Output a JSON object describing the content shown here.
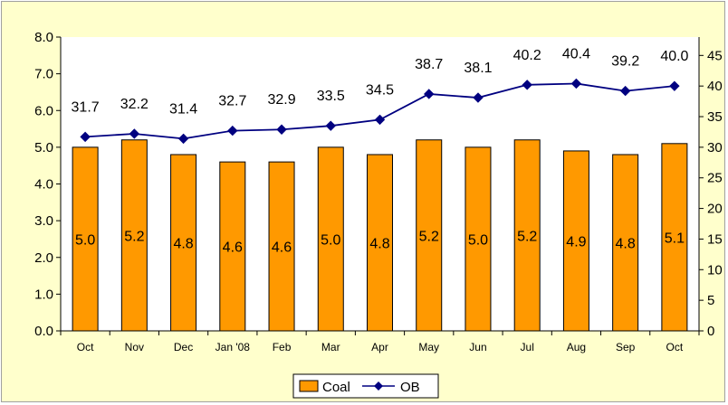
{
  "chart_data": {
    "type": "bar",
    "categories": [
      "Oct",
      "Nov",
      "Dec",
      "Jan '08",
      "Feb",
      "Mar",
      "Apr",
      "May",
      "Jun",
      "Jul",
      "Aug",
      "Sep",
      "Oct"
    ],
    "series": [
      {
        "name": "Coal",
        "type": "bar",
        "axis": "left",
        "color": "#ff9900",
        "values": [
          5.0,
          5.2,
          4.8,
          4.6,
          4.6,
          5.0,
          4.8,
          5.2,
          5.0,
          5.2,
          4.9,
          4.8,
          5.1
        ],
        "labels": [
          "5.0",
          "5.2",
          "4.8",
          "4.6",
          "4.6",
          "5.0",
          "4.8",
          "5.2",
          "5.0",
          "5.2",
          "4.9",
          "4.8",
          "5.1"
        ]
      },
      {
        "name": "OB",
        "type": "line",
        "axis": "right",
        "color": "#000080",
        "marker": "diamond",
        "values": [
          31.7,
          32.2,
          31.4,
          32.7,
          32.9,
          33.5,
          34.5,
          38.7,
          38.1,
          40.2,
          40.4,
          39.2,
          40.0
        ],
        "labels": [
          "31.7",
          "32.2",
          "31.4",
          "32.7",
          "32.9",
          "33.5",
          "34.5",
          "38.7",
          "38.1",
          "40.2",
          "40.4",
          "39.2",
          "40.0"
        ]
      }
    ],
    "y_left": {
      "ylim": [
        0,
        8
      ],
      "ticks": [
        "0.0",
        "1.0",
        "2.0",
        "3.0",
        "4.0",
        "5.0",
        "6.0",
        "7.0",
        "8.0"
      ]
    },
    "y_right": {
      "ylim": [
        0,
        48
      ],
      "ticks": [
        "0",
        "5",
        "10",
        "15",
        "20",
        "25",
        "30",
        "35",
        "40",
        "45"
      ]
    },
    "title": "",
    "xlabel": "",
    "ylabel": "",
    "grid": false,
    "legend": {
      "position": "bottom",
      "entries": [
        "Coal",
        "OB"
      ]
    }
  }
}
